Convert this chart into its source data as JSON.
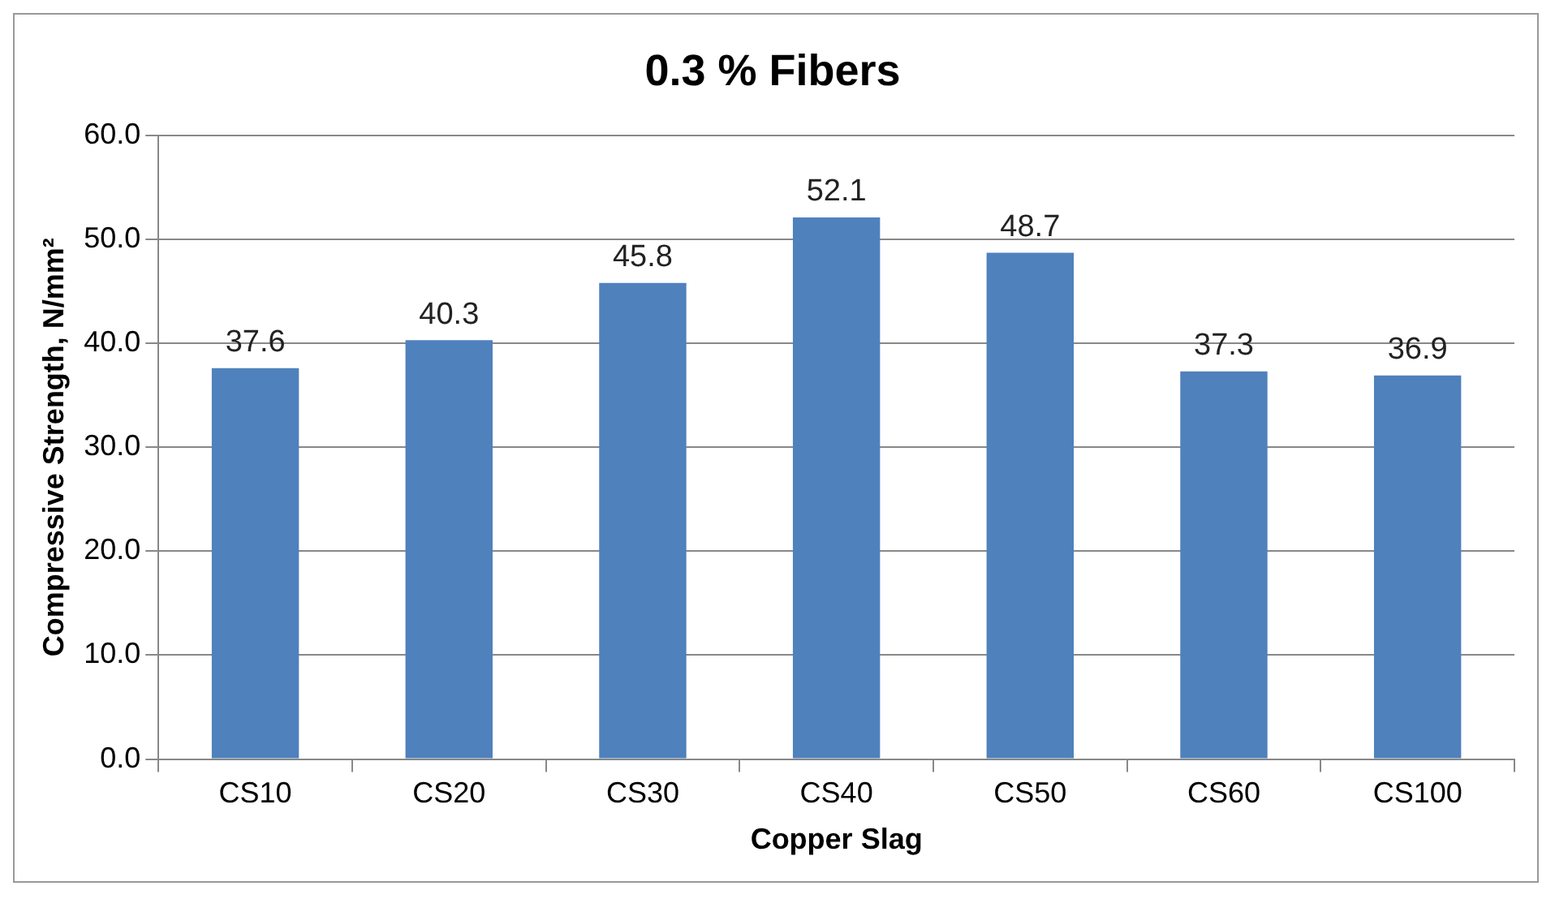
{
  "chart_data": {
    "type": "bar",
    "title": "0.3 % Fibers",
    "xlabel": "Copper Slag",
    "ylabel": "Compressive Strength, N/mm²",
    "categories": [
      "CS10",
      "CS20",
      "CS30",
      "CS40",
      "CS50",
      "CS60",
      "CS100"
    ],
    "values": [
      37.6,
      40.3,
      45.8,
      52.1,
      48.7,
      37.3,
      36.9
    ],
    "color": "#4f81bd",
    "ylim": [
      0,
      60
    ],
    "yticks": [
      {
        "value": 0,
        "label": "0.0"
      },
      {
        "value": 10,
        "label": "10.0"
      },
      {
        "value": 20,
        "label": "20.0"
      },
      {
        "value": 30,
        "label": "30.0"
      },
      {
        "value": 40,
        "label": "40.0"
      },
      {
        "value": 50,
        "label": "50.0"
      },
      {
        "value": 60,
        "label": "60.0"
      }
    ],
    "grid": "y",
    "data_labels": true
  }
}
